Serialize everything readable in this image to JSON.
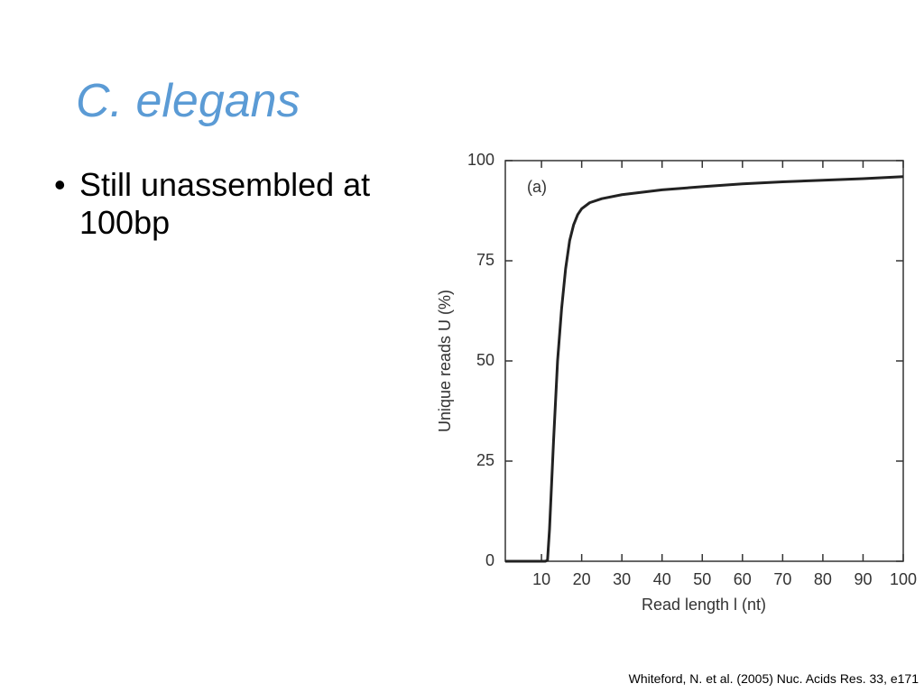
{
  "slide": {
    "title": "C. elegans",
    "bullet": "Still unassembled at 100bp",
    "citation": "Whiteford, N. et al. (2005) Nuc. Acids Res. 33, e171"
  },
  "chart_data": {
    "type": "line",
    "annotation": "(a)",
    "xlabel": "Read length l (nt)",
    "ylabel": "Unique reads U (%)",
    "x": [
      1,
      5,
      10,
      11,
      11.5,
      12,
      13,
      14,
      15,
      16,
      17,
      18,
      19,
      20,
      22,
      25,
      30,
      40,
      50,
      60,
      70,
      80,
      90,
      100
    ],
    "values": [
      0,
      0,
      0,
      0,
      0.3,
      8,
      30,
      50,
      63,
      73,
      80,
      84,
      86.5,
      88,
      89.5,
      90.5,
      91.5,
      92.7,
      93.5,
      94.2,
      94.7,
      95.1,
      95.5,
      96
    ],
    "color": "#222222",
    "xlim": [
      1,
      100
    ],
    "ylim": [
      0,
      100
    ],
    "xticks": [
      10,
      20,
      30,
      40,
      50,
      60,
      70,
      80,
      90,
      100
    ],
    "yticks": [
      0,
      25,
      50,
      75,
      100
    ]
  }
}
